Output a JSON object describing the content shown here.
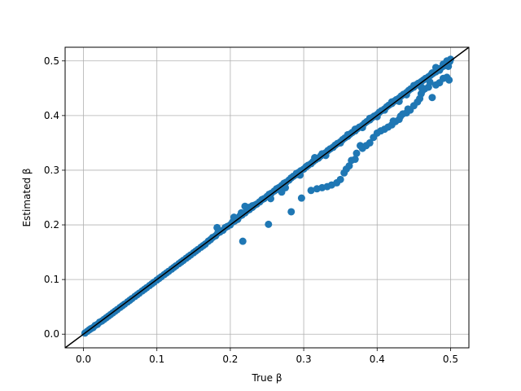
{
  "chart_data": {
    "type": "scatter",
    "title": "",
    "xlabel": "True β",
    "ylabel": "Estimated β",
    "xlim": [
      -0.025,
      0.525
    ],
    "ylim": [
      -0.025,
      0.525
    ],
    "xticks": [
      "0.0",
      "0.1",
      "0.2",
      "0.3",
      "0.4",
      "0.5"
    ],
    "yticks": [
      "0.0",
      "0.1",
      "0.2",
      "0.3",
      "0.4",
      "0.5"
    ],
    "grid": true,
    "legend": "none",
    "point_color": "#1f77b4",
    "reference_line": {
      "from": [
        -0.025,
        -0.025
      ],
      "to": [
        0.525,
        0.525
      ],
      "color": "#000000"
    },
    "series": [
      {
        "points": [
          [
            0.002,
            0.002
          ],
          [
            0.005,
            0.005
          ],
          [
            0.008,
            0.008
          ],
          [
            0.01,
            0.01
          ],
          [
            0.013,
            0.012
          ],
          [
            0.016,
            0.016
          ],
          [
            0.019,
            0.018
          ],
          [
            0.022,
            0.022
          ],
          [
            0.025,
            0.024
          ],
          [
            0.028,
            0.027
          ],
          [
            0.031,
            0.03
          ],
          [
            0.034,
            0.033
          ],
          [
            0.037,
            0.036
          ],
          [
            0.04,
            0.039
          ],
          [
            0.043,
            0.042
          ],
          [
            0.046,
            0.045
          ],
          [
            0.05,
            0.049
          ],
          [
            0.053,
            0.052
          ],
          [
            0.056,
            0.055
          ],
          [
            0.06,
            0.059
          ],
          [
            0.063,
            0.062
          ],
          [
            0.066,
            0.065
          ],
          [
            0.07,
            0.069
          ],
          [
            0.073,
            0.072
          ],
          [
            0.076,
            0.075
          ],
          [
            0.08,
            0.079
          ],
          [
            0.083,
            0.082
          ],
          [
            0.086,
            0.085
          ],
          [
            0.09,
            0.089
          ],
          [
            0.093,
            0.092
          ],
          [
            0.096,
            0.095
          ],
          [
            0.1,
            0.099
          ],
          [
            0.103,
            0.102
          ],
          [
            0.106,
            0.105
          ],
          [
            0.11,
            0.109
          ],
          [
            0.113,
            0.112
          ],
          [
            0.116,
            0.115
          ],
          [
            0.12,
            0.119
          ],
          [
            0.123,
            0.122
          ],
          [
            0.126,
            0.125
          ],
          [
            0.13,
            0.129
          ],
          [
            0.133,
            0.132
          ],
          [
            0.136,
            0.135
          ],
          [
            0.14,
            0.139
          ],
          [
            0.143,
            0.142
          ],
          [
            0.146,
            0.145
          ],
          [
            0.15,
            0.149
          ],
          [
            0.153,
            0.152
          ],
          [
            0.156,
            0.155
          ],
          [
            0.16,
            0.159
          ],
          [
            0.163,
            0.162
          ],
          [
            0.166,
            0.165
          ],
          [
            0.17,
            0.17
          ],
          [
            0.173,
            0.173
          ],
          [
            0.176,
            0.177
          ],
          [
            0.18,
            0.18
          ],
          [
            0.183,
            0.185
          ],
          [
            0.186,
            0.187
          ],
          [
            0.19,
            0.19
          ],
          [
            0.193,
            0.195
          ],
          [
            0.196,
            0.197
          ],
          [
            0.2,
            0.2
          ],
          [
            0.203,
            0.205
          ],
          [
            0.206,
            0.207
          ],
          [
            0.21,
            0.21
          ],
          [
            0.213,
            0.216
          ],
          [
            0.216,
            0.218
          ],
          [
            0.22,
            0.222
          ],
          [
            0.223,
            0.226
          ],
          [
            0.226,
            0.228
          ],
          [
            0.23,
            0.232
          ],
          [
            0.233,
            0.236
          ],
          [
            0.236,
            0.238
          ],
          [
            0.24,
            0.242
          ],
          [
            0.243,
            0.246
          ],
          [
            0.246,
            0.248
          ],
          [
            0.25,
            0.252
          ],
          [
            0.253,
            0.256
          ],
          [
            0.256,
            0.258
          ],
          [
            0.26,
            0.262
          ],
          [
            0.263,
            0.266
          ],
          [
            0.266,
            0.268
          ],
          [
            0.27,
            0.272
          ],
          [
            0.273,
            0.276
          ],
          [
            0.276,
            0.278
          ],
          [
            0.28,
            0.282
          ],
          [
            0.283,
            0.286
          ],
          [
            0.286,
            0.289
          ],
          [
            0.29,
            0.292
          ],
          [
            0.293,
            0.296
          ],
          [
            0.296,
            0.299
          ],
          [
            0.3,
            0.302
          ],
          [
            0.303,
            0.306
          ],
          [
            0.306,
            0.309
          ],
          [
            0.31,
            0.312
          ],
          [
            0.313,
            0.316
          ],
          [
            0.316,
            0.319
          ],
          [
            0.32,
            0.322
          ],
          [
            0.323,
            0.326
          ],
          [
            0.326,
            0.329
          ],
          [
            0.33,
            0.332
          ],
          [
            0.333,
            0.336
          ],
          [
            0.336,
            0.339
          ],
          [
            0.34,
            0.342
          ],
          [
            0.343,
            0.346
          ],
          [
            0.346,
            0.349
          ],
          [
            0.35,
            0.352
          ],
          [
            0.353,
            0.356
          ],
          [
            0.356,
            0.359
          ],
          [
            0.36,
            0.362
          ],
          [
            0.363,
            0.366
          ],
          [
            0.366,
            0.369
          ],
          [
            0.37,
            0.372
          ],
          [
            0.373,
            0.376
          ],
          [
            0.376,
            0.379
          ],
          [
            0.38,
            0.382
          ],
          [
            0.383,
            0.386
          ],
          [
            0.386,
            0.389
          ],
          [
            0.39,
            0.392
          ],
          [
            0.393,
            0.396
          ],
          [
            0.396,
            0.399
          ],
          [
            0.4,
            0.402
          ],
          [
            0.403,
            0.406
          ],
          [
            0.406,
            0.409
          ],
          [
            0.41,
            0.412
          ],
          [
            0.413,
            0.416
          ],
          [
            0.416,
            0.419
          ],
          [
            0.42,
            0.422
          ],
          [
            0.423,
            0.426
          ],
          [
            0.426,
            0.429
          ],
          [
            0.43,
            0.432
          ],
          [
            0.433,
            0.436
          ],
          [
            0.436,
            0.439
          ],
          [
            0.44,
            0.442
          ],
          [
            0.443,
            0.446
          ],
          [
            0.446,
            0.449
          ],
          [
            0.45,
            0.452
          ],
          [
            0.453,
            0.456
          ],
          [
            0.456,
            0.459
          ],
          [
            0.46,
            0.462
          ],
          [
            0.463,
            0.465
          ],
          [
            0.466,
            0.468
          ],
          [
            0.47,
            0.471
          ],
          [
            0.473,
            0.474
          ],
          [
            0.476,
            0.477
          ],
          [
            0.48,
            0.48
          ],
          [
            0.483,
            0.483
          ],
          [
            0.486,
            0.486
          ],
          [
            0.49,
            0.49
          ],
          [
            0.493,
            0.493
          ],
          [
            0.496,
            0.496
          ],
          [
            0.499,
            0.499
          ],
          [
            0.182,
            0.195
          ],
          [
            0.205,
            0.214
          ],
          [
            0.215,
            0.222
          ],
          [
            0.22,
            0.234
          ],
          [
            0.225,
            0.232
          ],
          [
            0.23,
            0.235
          ],
          [
            0.24,
            0.242
          ],
          [
            0.255,
            0.248
          ],
          [
            0.265,
            0.265
          ],
          [
            0.27,
            0.26
          ],
          [
            0.275,
            0.268
          ],
          [
            0.29,
            0.294
          ],
          [
            0.295,
            0.291
          ],
          [
            0.305,
            0.308
          ],
          [
            0.315,
            0.323
          ],
          [
            0.325,
            0.33
          ],
          [
            0.33,
            0.327
          ],
          [
            0.34,
            0.342
          ],
          [
            0.35,
            0.35
          ],
          [
            0.36,
            0.365
          ],
          [
            0.37,
            0.375
          ],
          [
            0.38,
            0.378
          ],
          [
            0.39,
            0.395
          ],
          [
            0.4,
            0.398
          ],
          [
            0.41,
            0.41
          ],
          [
            0.42,
            0.425
          ],
          [
            0.43,
            0.426
          ],
          [
            0.44,
            0.438
          ],
          [
            0.45,
            0.455
          ],
          [
            0.46,
            0.452
          ],
          [
            0.47,
            0.47
          ],
          [
            0.475,
            0.478
          ],
          [
            0.48,
            0.488
          ],
          [
            0.485,
            0.483
          ],
          [
            0.49,
            0.494
          ],
          [
            0.495,
            0.5
          ],
          [
            0.5,
            0.503
          ],
          [
            0.497,
            0.49
          ],
          [
            0.217,
            0.17
          ],
          [
            0.252,
            0.201
          ],
          [
            0.283,
            0.224
          ],
          [
            0.297,
            0.249
          ],
          [
            0.31,
            0.263
          ],
          [
            0.318,
            0.266
          ],
          [
            0.325,
            0.268
          ],
          [
            0.332,
            0.27
          ],
          [
            0.338,
            0.273
          ],
          [
            0.345,
            0.277
          ],
          [
            0.35,
            0.283
          ],
          [
            0.355,
            0.295
          ],
          [
            0.358,
            0.302
          ],
          [
            0.362,
            0.308
          ],
          [
            0.365,
            0.318
          ],
          [
            0.37,
            0.32
          ],
          [
            0.372,
            0.331
          ],
          [
            0.377,
            0.345
          ],
          [
            0.38,
            0.34
          ],
          [
            0.385,
            0.345
          ],
          [
            0.39,
            0.35
          ],
          [
            0.395,
            0.36
          ],
          [
            0.4,
            0.368
          ],
          [
            0.405,
            0.372
          ],
          [
            0.41,
            0.375
          ],
          [
            0.415,
            0.379
          ],
          [
            0.42,
            0.383
          ],
          [
            0.425,
            0.389
          ],
          [
            0.43,
            0.393
          ],
          [
            0.435,
            0.403
          ],
          [
            0.44,
            0.405
          ],
          [
            0.445,
            0.41
          ],
          [
            0.45,
            0.418
          ],
          [
            0.455,
            0.425
          ],
          [
            0.46,
            0.44
          ],
          [
            0.465,
            0.449
          ],
          [
            0.47,
            0.452
          ],
          [
            0.475,
            0.433
          ],
          [
            0.48,
            0.456
          ],
          [
            0.485,
            0.46
          ],
          [
            0.49,
            0.468
          ],
          [
            0.495,
            0.47
          ],
          [
            0.498,
            0.465
          ],
          [
            0.472,
            0.461
          ],
          [
            0.462,
            0.446
          ],
          [
            0.458,
            0.431
          ],
          [
            0.442,
            0.412
          ],
          [
            0.432,
            0.399
          ],
          [
            0.422,
            0.39
          ]
        ]
      }
    ]
  }
}
